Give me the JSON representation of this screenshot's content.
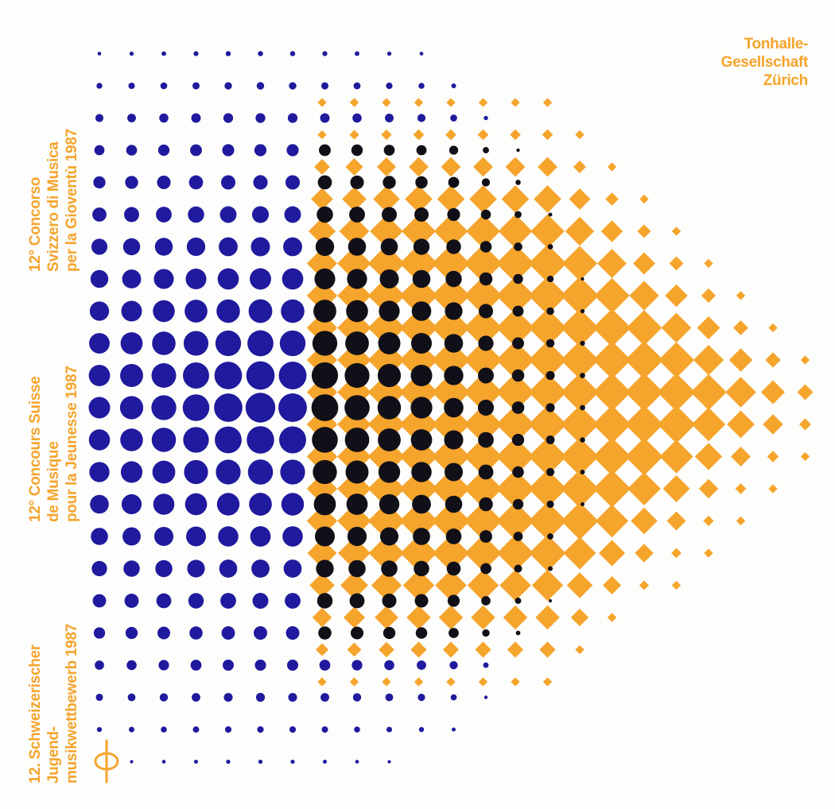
{
  "colors": {
    "orange": "#f5a42c",
    "blue": "#201a9e",
    "black": "#111018",
    "paper": "#fdfdfb"
  },
  "organizer": {
    "lines": [
      "Tonhalle-",
      "Gesellschaft",
      "Zürich"
    ]
  },
  "titles": {
    "italian": [
      "12° Concorso",
      "Svizzero di Musica",
      "per la Gioventù 1987"
    ],
    "french": [
      "12° Concours Suisse",
      "de Musique",
      "pour la Jeunesse 1987"
    ],
    "german": [
      "12. Schweizerischer",
      "Jugend-",
      "musikwettbewerb 1987"
    ]
  },
  "logo": {
    "icon": "phi-logo-icon"
  }
}
